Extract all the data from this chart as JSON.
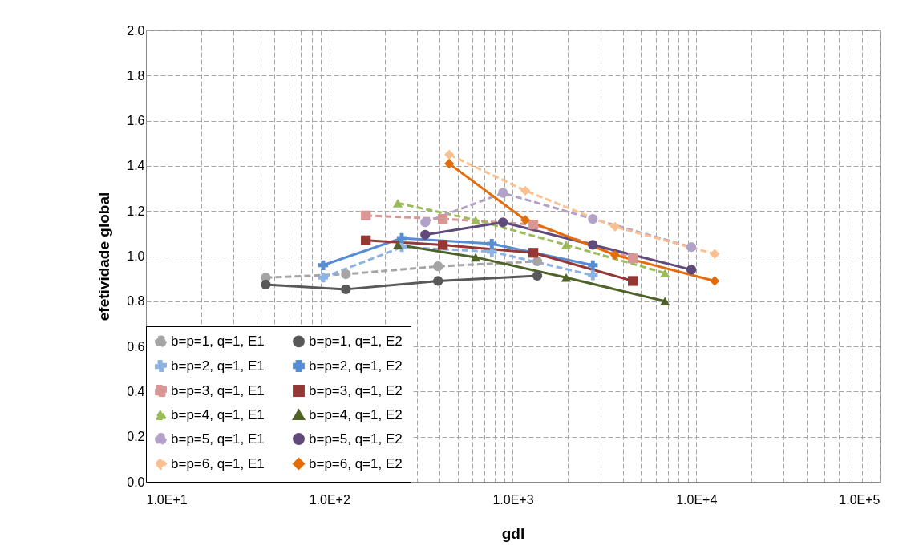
{
  "chart_data": {
    "type": "line",
    "xlabel": "gdl",
    "ylabel": "efetividade global",
    "log": "x",
    "xlim": [
      10,
      100000
    ],
    "ylim": [
      0,
      2
    ],
    "xticks": [
      {
        "value": 10,
        "label": "1.0E+1"
      },
      {
        "value": 100,
        "label": "1.0E+2"
      },
      {
        "value": 1000,
        "label": "1.0E+3"
      },
      {
        "value": 10000,
        "label": "1.0E+4"
      },
      {
        "value": 100000,
        "label": "1.0E+5"
      }
    ],
    "yticks": [
      {
        "value": 0,
        "label": "0.0"
      },
      {
        "value": 0.2,
        "label": "0.2"
      },
      {
        "value": 0.4,
        "label": "0.4"
      },
      {
        "value": 0.6,
        "label": "0.6"
      },
      {
        "value": 0.8,
        "label": "0.8"
      },
      {
        "value": 1,
        "label": "1.0"
      },
      {
        "value": 1.2,
        "label": "1.2"
      },
      {
        "value": 1.4,
        "label": "1.4"
      },
      {
        "value": 1.6,
        "label": "1.6"
      },
      {
        "value": 1.8,
        "label": "1.8"
      },
      {
        "value": 2,
        "label": "2.0"
      }
    ],
    "grid": true,
    "legend": "bottom left",
    "series": [
      {
        "name": "b=p=1, q=1, E1",
        "color": "#a5a5a5",
        "line_style": "dashed",
        "marker": "circle",
        "x": [
          45,
          123,
          391,
          1360
        ],
        "values": [
          0.905,
          0.92,
          0.955,
          0.977
        ]
      },
      {
        "name": "b=p=1, q=1, E2",
        "color": "#595959",
        "line_style": "solid",
        "marker": "circle",
        "x": [
          45,
          123,
          391,
          1360
        ],
        "values": [
          0.874,
          0.853,
          0.89,
          0.913
        ]
      },
      {
        "name": "b=p=2, q=1, E1",
        "color": "#8db3e2",
        "line_style": "dashed",
        "marker": "cross",
        "x": [
          92.5,
          248,
          768,
          2730
        ],
        "values": [
          0.905,
          1.04,
          1.02,
          0.915
        ]
      },
      {
        "name": "b=p=2, q=1, E2",
        "color": "#558ed5",
        "line_style": "solid",
        "marker": "cross",
        "x": [
          92.5,
          248,
          768,
          2730
        ],
        "values": [
          0.96,
          1.08,
          1.055,
          0.96
        ]
      },
      {
        "name": "b=p=3, q=1, E1",
        "color": "#d99694",
        "line_style": "dashed",
        "marker": "square",
        "x": [
          158,
          415,
          1294,
          4510
        ],
        "values": [
          1.18,
          1.165,
          1.14,
          0.99
        ]
      },
      {
        "name": "b=p=3, q=1, E2",
        "color": "#953735",
        "line_style": "solid",
        "marker": "square",
        "x": [
          158,
          415,
          1294,
          4510
        ],
        "values": [
          1.07,
          1.05,
          1.015,
          0.89
        ]
      },
      {
        "name": "b=p=4, q=1, E1",
        "color": "#9bbb59",
        "line_style": "dashed",
        "marker": "triangle",
        "x": [
          236,
          627,
          1954,
          6750
        ],
        "values": [
          1.235,
          1.16,
          1.05,
          0.925
        ]
      },
      {
        "name": "b=p=4, q=1, E2",
        "color": "#4f6228",
        "line_style": "solid",
        "marker": "triangle",
        "x": [
          236,
          627,
          1954,
          6750
        ],
        "values": [
          1.05,
          0.995,
          0.905,
          0.8
        ]
      },
      {
        "name": "b=p=5, q=1, E1",
        "color": "#b3a2c7",
        "line_style": "dashed",
        "marker": "circle",
        "x": [
          333,
          883,
          2730,
          9400
        ],
        "values": [
          1.15,
          1.28,
          1.165,
          1.04
        ]
      },
      {
        "name": "b=p=5, q=1, E2",
        "color": "#604a7b",
        "line_style": "solid",
        "marker": "circle",
        "x": [
          333,
          883,
          2730,
          9400
        ],
        "values": [
          1.095,
          1.15,
          1.05,
          0.94
        ]
      },
      {
        "name": "b=p=6, q=1, E1",
        "color": "#fac090",
        "line_style": "dashed",
        "marker": "diamond",
        "x": [
          450,
          1170,
          3610,
          12600
        ],
        "values": [
          1.45,
          1.29,
          1.13,
          1.01
        ]
      },
      {
        "name": "b=p=6, q=1, E2",
        "color": "#e46c0a",
        "line_style": "solid",
        "marker": "diamond",
        "x": [
          450,
          1170,
          3610,
          12600
        ],
        "values": [
          1.41,
          1.16,
          1.005,
          0.89
        ]
      }
    ]
  }
}
